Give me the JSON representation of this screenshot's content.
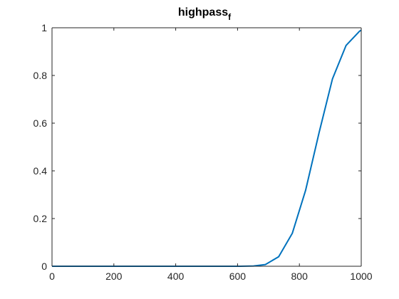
{
  "chart_data": {
    "type": "line",
    "title": "highpass",
    "title_subscript": "f",
    "xlabel": "",
    "ylabel": "",
    "xlim": [
      0,
      1000
    ],
    "ylim": [
      0,
      1
    ],
    "grid": false,
    "x_ticks": [
      0,
      200,
      400,
      600,
      800,
      1000
    ],
    "x_tick_labels": [
      "0",
      "200",
      "400",
      "600",
      "800",
      "1000"
    ],
    "y_ticks": [
      0,
      0.2,
      0.4,
      0.6,
      0.8,
      1
    ],
    "y_tick_labels": [
      "0",
      "0.2",
      "0.4",
      "0.6",
      "0.8",
      "1"
    ],
    "series": [
      {
        "color": "#0072BD",
        "x": [
          0,
          43,
          87,
          130,
          174,
          217,
          261,
          304,
          348,
          391,
          435,
          478,
          522,
          565,
          609,
          652,
          690,
          733,
          777,
          820,
          864,
          907,
          951,
          994,
          1000
        ],
        "y": [
          0,
          0,
          0,
          0,
          0,
          0,
          0,
          0,
          0,
          0,
          0,
          0,
          0,
          0,
          0,
          0.001,
          0.007,
          0.04,
          0.138,
          0.318,
          0.562,
          0.786,
          0.926,
          0.985,
          0.99
        ]
      }
    ]
  }
}
